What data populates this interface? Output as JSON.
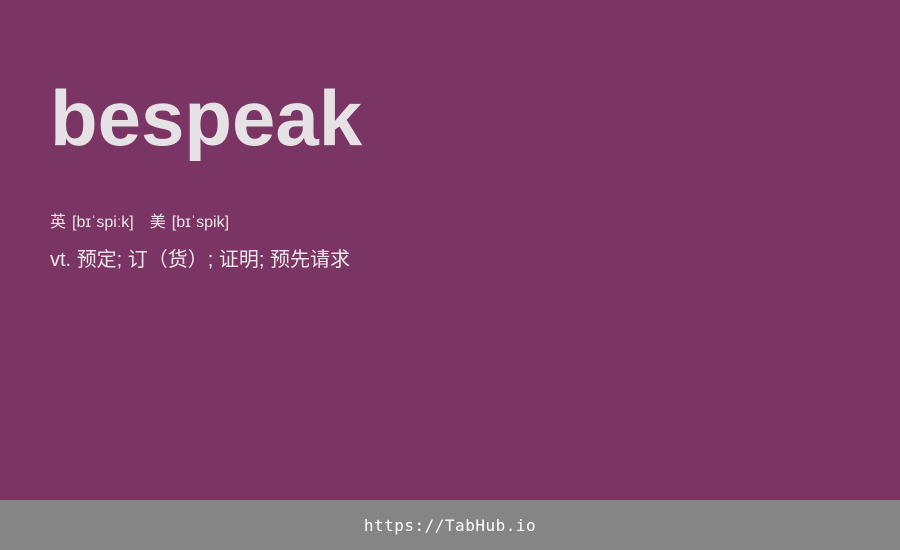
{
  "word": "bespeak",
  "phonetics": {
    "uk_label": "英",
    "uk_ipa": "[bɪˈspiːk]",
    "us_label": "美",
    "us_ipa": "[bɪˈspik]"
  },
  "definition": {
    "pos": "vt.",
    "meaning": "预定; 订（货）; 证明; 预先请求"
  },
  "footer": {
    "link_text": "https://TabHub.io"
  },
  "colors": {
    "background": "#7b3564",
    "footer_background": "#858585",
    "word_text": "#e6e1e4"
  }
}
